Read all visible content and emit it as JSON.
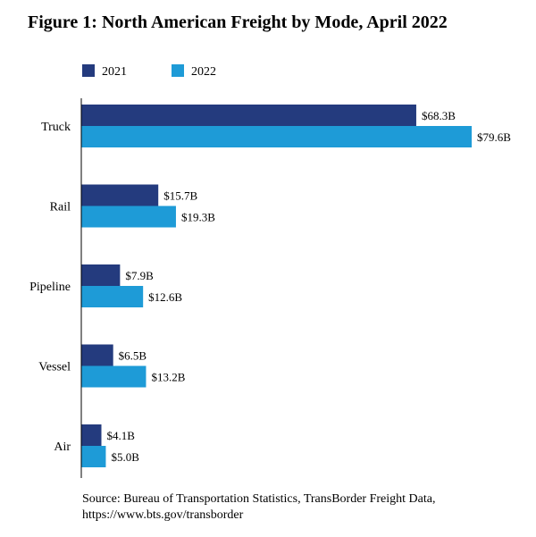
{
  "chart_data": {
    "type": "bar",
    "orientation": "horizontal",
    "title": "Figure 1: North American Freight by Mode, April 2022",
    "categories": [
      "Truck",
      "Rail",
      "Pipeline",
      "Vessel",
      "Air"
    ],
    "series": [
      {
        "name": "2021",
        "values": [
          68.3,
          15.7,
          7.9,
          6.5,
          4.1
        ],
        "labels": [
          "$68.3B",
          "$15.7B",
          "$7.9B",
          "$6.5B",
          "$4.1B"
        ],
        "color": "#243b7e"
      },
      {
        "name": "2022",
        "values": [
          79.6,
          19.3,
          12.6,
          13.2,
          5.0
        ],
        "labels": [
          "$79.6B",
          "$19.3B",
          "$12.6B",
          "$13.2B",
          "$5.0B"
        ],
        "color": "#1e9bd7"
      }
    ],
    "xlim": [
      0,
      80
    ],
    "grid": false,
    "legend": "top-left"
  },
  "source": {
    "line1": "Source: Bureau of Transportation Statistics, TransBorder Freight Data,",
    "line2": "https://www.bts.gov/transborder"
  }
}
